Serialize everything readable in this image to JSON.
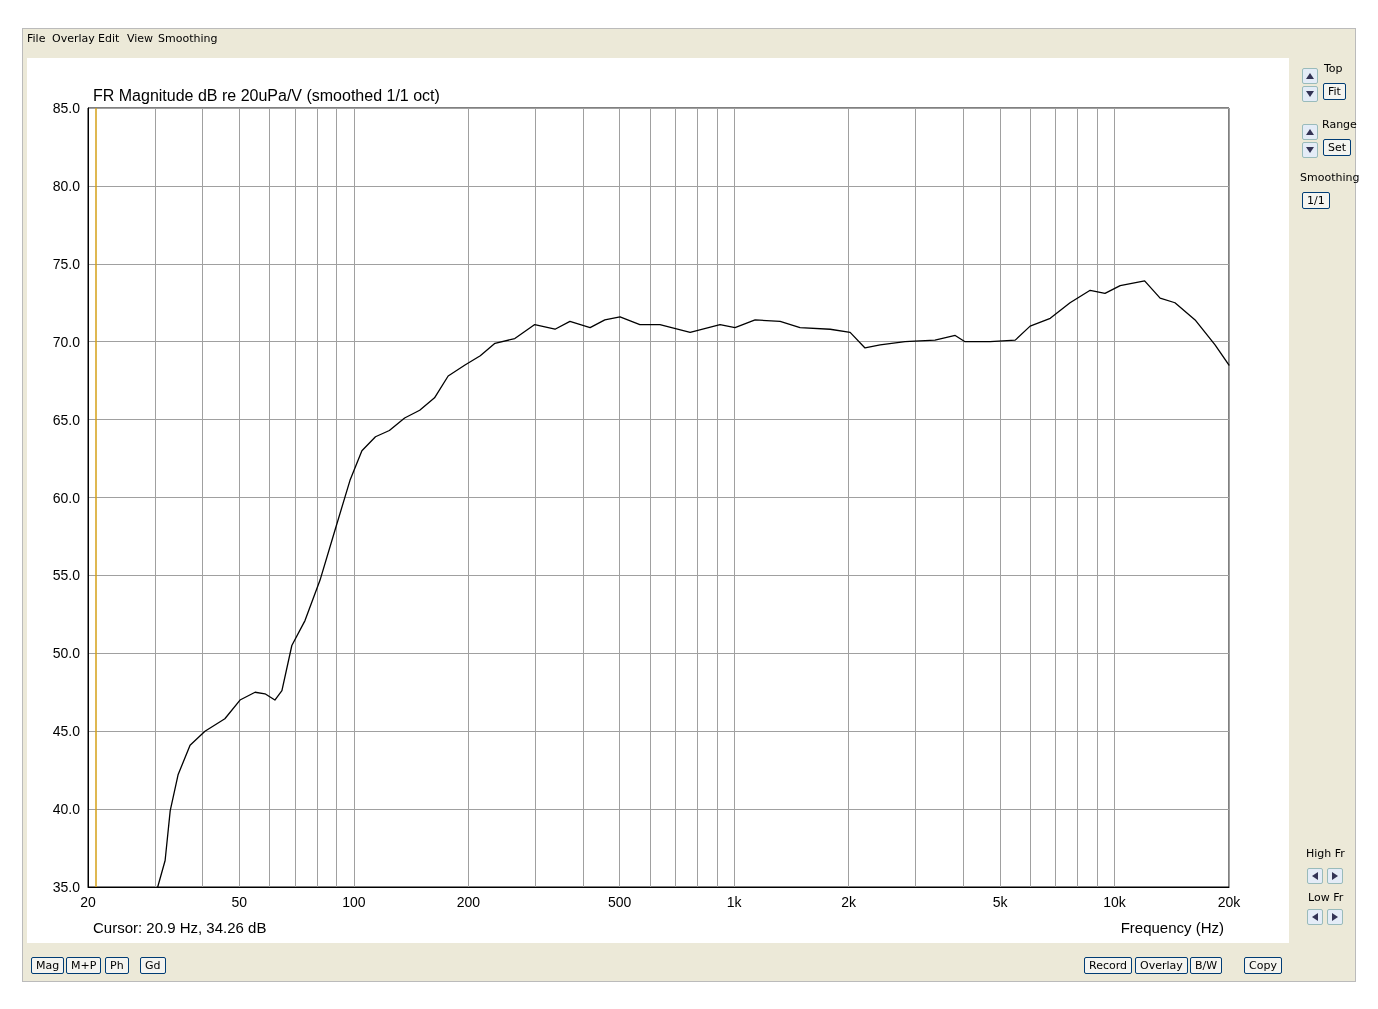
{
  "chart_data": {
    "type": "line",
    "title": "FR Magnitude dB re 20uPa/V (smoothed 1/1 oct)",
    "xlabel": "Frequency (Hz)",
    "annotations": [
      "Cursor: 20.9 Hz, 34.26 dB",
      "File",
      "Overlay",
      "Edit",
      "View",
      "Smoothing",
      "Top",
      "Fit",
      "Range",
      "Set",
      "Smoothing",
      "1/1",
      "High Fr",
      "Low Fr",
      "Mag",
      "M+P",
      "Ph",
      "Gd",
      "Record",
      "Overlay",
      "B/W",
      "Copy"
    ],
    "log": "x",
    "grid": true,
    "marker": "none",
    "line_style": "solid",
    "xlim": [
      20,
      20000
    ],
    "ylim": [
      35,
      85
    ],
    "xticks": [
      20,
      {
        "value": 30,
        "label": null
      },
      {
        "value": 40,
        "label": null
      },
      50,
      {
        "value": 60,
        "label": null
      },
      {
        "value": 70,
        "label": null
      },
      {
        "value": 80,
        "label": null
      },
      {
        "value": 90,
        "label": null
      },
      100,
      200,
      {
        "value": 300,
        "label": null
      },
      {
        "value": 400,
        "label": null
      },
      500,
      {
        "value": 600,
        "label": null
      },
      {
        "value": 700,
        "label": null
      },
      {
        "value": 800,
        "label": null
      },
      {
        "value": 900,
        "label": null
      },
      {
        "value": 1000,
        "label": "1k"
      },
      {
        "value": 2000,
        "label": "2k"
      },
      {
        "value": 3000,
        "label": null
      },
      {
        "value": 4000,
        "label": null
      },
      {
        "value": 5000,
        "label": "5k"
      },
      {
        "value": 6000,
        "label": null
      },
      {
        "value": 7000,
        "label": null
      },
      {
        "value": 8000,
        "label": null
      },
      {
        "value": 9000,
        "label": null
      },
      {
        "value": 10000,
        "label": "10k"
      },
      {
        "value": 20000,
        "label": "20k"
      }
    ],
    "yticks": [
      {
        "value": 35,
        "label": "35.0"
      },
      {
        "value": 40,
        "label": "40.0"
      },
      {
        "value": 45,
        "label": "45.0"
      },
      {
        "value": 50,
        "label": "50.0"
      },
      {
        "value": 55,
        "label": "55.0"
      },
      {
        "value": 60,
        "label": "60.0"
      },
      {
        "value": 65,
        "label": "65.0"
      },
      {
        "value": 70,
        "label": "70.0"
      },
      {
        "value": 75,
        "label": "75.0"
      },
      {
        "value": 80,
        "label": "80.0"
      },
      {
        "value": 85,
        "label": "85.0"
      }
    ],
    "ref_lines": [
      {
        "axis": "x",
        "value": 20.9,
        "label": null,
        "color": "#d4a017"
      }
    ],
    "series": [
      {
        "color": "#000000",
        "x": [
          30.5,
          31.9,
          32.9,
          34.5,
          37.1,
          40.6,
          45.8,
          50.2,
          55,
          58.4,
          62,
          64.7,
          68.7,
          74.4,
          81.5,
          89.2,
          97.7,
          105,
          114,
          124,
          136,
          149,
          163,
          177,
          196,
          215,
          235,
          265,
          299,
          338,
          370,
          418,
          457,
          501,
          565,
          638,
          766,
          918,
          1005,
          1135,
          1321,
          1490,
          1788,
          2018,
          2208,
          2420,
          2813,
          3373,
          3811,
          4046,
          4710,
          5482,
          6000,
          6777,
          7640,
          8630,
          9440,
          10350,
          12000,
          13180,
          14420,
          16290,
          18380,
          20000
        ],
        "values": [
          35,
          36.7,
          39.9,
          42.2,
          44.1,
          45,
          45.8,
          47,
          47.5,
          47.4,
          47,
          47.6,
          50.5,
          52.1,
          54.7,
          57.9,
          61.1,
          63,
          63.9,
          64.3,
          65.1,
          65.6,
          66.4,
          67.8,
          68.5,
          69.1,
          69.9,
          70.2,
          71.1,
          70.8,
          71.3,
          70.9,
          71.4,
          71.6,
          71.1,
          71.1,
          70.6,
          71.1,
          70.9,
          71.4,
          71.3,
          70.9,
          70.8,
          70.6,
          69.6,
          69.8,
          70,
          70.1,
          70.4,
          70,
          70,
          70.1,
          71,
          71.5,
          72.5,
          73.3,
          73.1,
          73.6,
          73.9,
          72.8,
          72.5,
          71.4,
          69.8,
          68.5
        ]
      }
    ]
  }
}
